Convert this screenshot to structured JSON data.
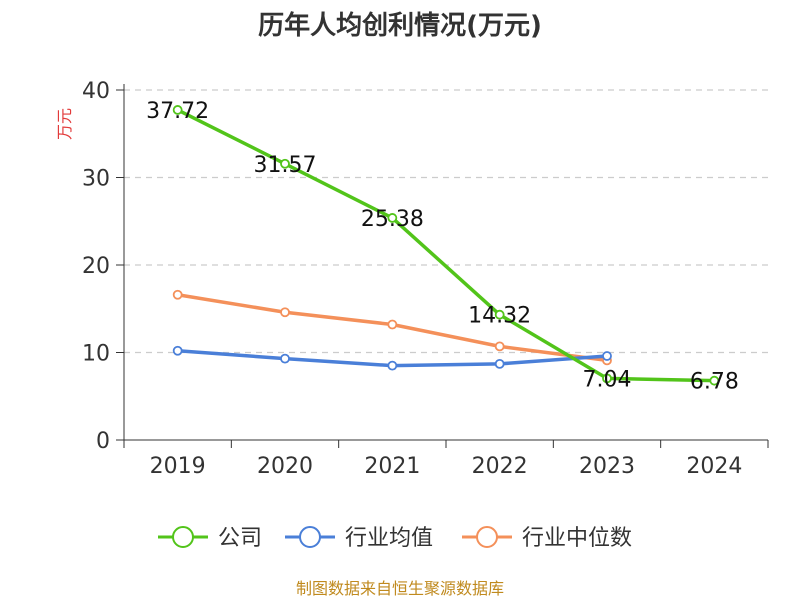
{
  "title": "历年人均创利情况(万元)",
  "source": "制图数据来自恒生聚源数据库",
  "chart_data": {
    "type": "line",
    "ylabel": "万元",
    "ylim": [
      0,
      40
    ],
    "yticks": [
      0,
      10,
      20,
      30,
      40
    ],
    "categories": [
      "2019",
      "2020",
      "2021",
      "2022",
      "2023",
      "2024"
    ],
    "grid": true,
    "legend_position": "bottom",
    "series": [
      {
        "name": "公司",
        "color": "#52c41a",
        "values": [
          37.72,
          31.57,
          25.38,
          14.32,
          7.04,
          6.78
        ],
        "labels": [
          "37.72",
          "31.57",
          "25.38",
          "14.32",
          "7.04",
          "6.78"
        ]
      },
      {
        "name": "行业均值",
        "color": "#4a7fd8",
        "values": [
          10.2,
          9.3,
          8.5,
          8.7,
          9.6,
          null
        ]
      },
      {
        "name": "行业中位数",
        "color": "#f4905a",
        "values": [
          16.6,
          14.6,
          13.2,
          10.7,
          9.1,
          null
        ]
      }
    ]
  }
}
